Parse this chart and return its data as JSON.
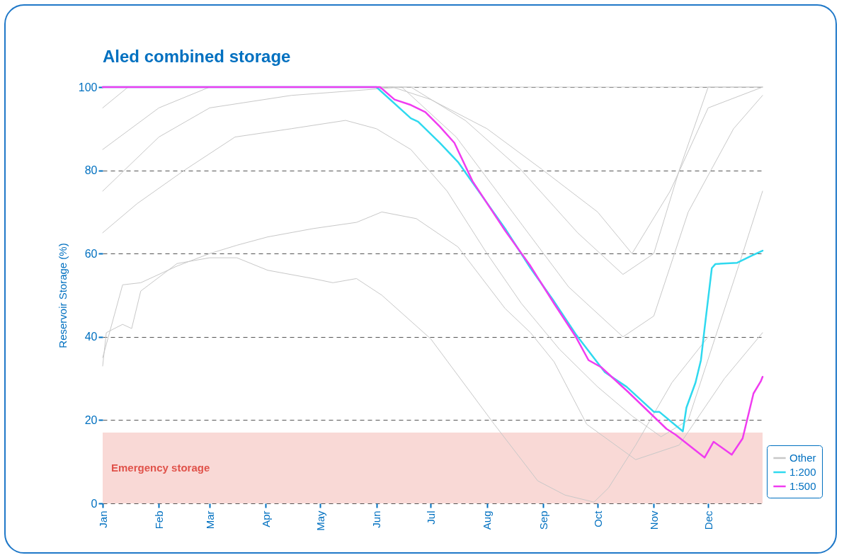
{
  "chart_data": {
    "type": "line",
    "title": "Aled combined storage",
    "ylabel": "Reservoir Storage (%)",
    "xlim": [
      "--01-01",
      "--12-31"
    ],
    "xticks": [
      {
        "value": "--01-01",
        "label": "Jan"
      },
      {
        "value": "--02-01",
        "label": "Feb"
      },
      {
        "value": "--03-01",
        "label": "Mar"
      },
      {
        "value": "--04-01",
        "label": "Apr"
      },
      {
        "value": "--05-01",
        "label": "May"
      },
      {
        "value": "--06-01",
        "label": "Jun"
      },
      {
        "value": "--07-01",
        "label": "Jul"
      },
      {
        "value": "--08-01",
        "label": "Aug"
      },
      {
        "value": "--09-01",
        "label": "Sep"
      },
      {
        "value": "--10-01",
        "label": "Oct"
      },
      {
        "value": "--11-01",
        "label": "Nov"
      },
      {
        "value": "--12-01",
        "label": "Dec"
      }
    ],
    "ylim": [
      0,
      100
    ],
    "yticks": [
      0,
      20,
      40,
      60,
      80,
      100
    ],
    "grid": "y",
    "legend": "bottom right",
    "line_style": "solid",
    "marker": "none",
    "bands": [
      {
        "axis": "y",
        "from": 0,
        "to": 17,
        "label": "Emergency storage",
        "color": "#f9d9d6"
      }
    ],
    "series": [
      {
        "name": "Other",
        "color": "#c8c8c8",
        "x": [
          "--01-01",
          "--12-31"
        ],
        "values": [
          100,
          100
        ]
      },
      {
        "color": "#c8c8c8",
        "x": [
          "--01-01",
          "--01-20",
          "--02-15",
          "--03-15",
          "--04-15",
          "--05-15",
          "--06-01",
          "--06-20",
          "--07-10",
          "--08-01",
          "--08-20",
          "--09-10",
          "--10-01",
          "--10-20",
          "--11-05",
          "--11-20",
          "--12-05",
          "--12-20",
          "--12-31"
        ],
        "values": [
          65,
          72,
          80,
          88,
          90,
          92,
          90,
          85,
          75,
          60,
          48,
          37,
          28,
          21,
          16,
          20,
          40,
          60,
          75
        ]
      },
      {
        "color": "#c8c8c8",
        "x": [
          "--01-01",
          "--02-01",
          "--03-01",
          "--06-10",
          "--07-01",
          "--08-01",
          "--09-01",
          "--10-01",
          "--10-20",
          "--11-10",
          "--12-01",
          "--12-31"
        ],
        "values": [
          85,
          95,
          100,
          100,
          97,
          90,
          80,
          70,
          60,
          75,
          95,
          100
        ]
      },
      {
        "color": "#c8c8c8",
        "x": [
          "--01-01",
          "--02-01",
          "--03-01",
          "--04-15",
          "--06-15",
          "--07-15",
          "--08-15",
          "--09-15",
          "--10-15",
          "--11-01",
          "--11-20",
          "--12-15",
          "--12-31"
        ],
        "values": [
          75,
          88,
          95,
          98,
          100,
          88,
          70,
          52,
          40,
          45,
          70,
          90,
          98
        ]
      },
      {
        "color": "#c8c8c8",
        "x": [
          "--01-01",
          "--01-15",
          "--06-20",
          "--07-20",
          "--08-20",
          "--09-20",
          "--10-15",
          "--11-01",
          "--11-15",
          "--12-01",
          "--12-31"
        ],
        "values": [
          95,
          100,
          100,
          92,
          80,
          65,
          55,
          60,
          80,
          100,
          100
        ]
      },
      {
        "color": "#c8c8c8",
        "x": [
          "--01-01",
          "--01-12",
          "--01-22",
          "--02-11",
          "--03-01",
          "--03-16",
          "--04-02",
          "--04-27",
          "--05-21",
          "--06-04",
          "--06-23",
          "--07-16",
          "--08-11",
          "--08-25",
          "--09-07",
          "--09-25",
          "--10-22",
          "--11-15",
          "--12-10",
          "--12-31"
        ],
        "values": [
          35,
          52.5,
          53,
          57,
          60,
          62,
          64,
          66,
          67.5,
          70,
          68.4,
          61.6,
          46.8,
          41,
          34,
          19,
          10.5,
          14,
          30,
          41
        ]
      },
      {
        "color": "#c8c8c8",
        "x": [
          "--01-01",
          "--01-03",
          "--01-12",
          "--01-17",
          "--01-22",
          "--02-11",
          "--03-01",
          "--03-16",
          "--04-02",
          "--04-27",
          "--05-08",
          "--05-21",
          "--06-04",
          "--07-01",
          "--08-05",
          "--08-29",
          "--09-13",
          "--09-29",
          "--10-07",
          "--10-22",
          "--11-11",
          "--12-01"
        ],
        "values": [
          33,
          41,
          43,
          42,
          51,
          57.6,
          59,
          59,
          56,
          54,
          53,
          54,
          50,
          39.5,
          19,
          5.4,
          2,
          0.3,
          3.7,
          14,
          29,
          40
        ]
      },
      {
        "name": "1:200",
        "color": "#2fd9ef",
        "x": [
          "--01-01",
          "--06-01",
          "--06-20",
          "--06-24",
          "--07-06",
          "--07-16",
          "--07-29",
          "--08-11",
          "--08-25",
          "--09-07",
          "--09-19",
          "--10-05",
          "--10-17",
          "--11-01",
          "--11-04",
          "--11-17",
          "--11-19",
          "--11-24",
          "--11-27",
          "--11-29",
          "--12-03",
          "--12-05",
          "--12-17",
          "--12-25",
          "--12-31"
        ],
        "values": [
          100,
          100,
          92.5,
          91.7,
          86.6,
          82,
          74,
          66,
          56.5,
          48.5,
          40.6,
          31.5,
          28,
          22,
          22,
          17.3,
          23,
          29,
          34.4,
          42,
          56.5,
          57.5,
          57.8,
          59.5,
          60.7
        ]
      },
      {
        "name": "1:500",
        "color": "#f03cf0",
        "x": [
          "--01-01",
          "--06-03",
          "--06-11",
          "--06-20",
          "--06-28",
          "--07-06",
          "--07-14",
          "--07-24",
          "--08-11",
          "--08-25",
          "--09-07",
          "--09-19",
          "--09-26",
          "--10-03",
          "--10-18",
          "--11-08",
          "--11-13",
          "--11-29",
          "--12-04",
          "--12-14",
          "--12-20",
          "--12-26",
          "--12-30",
          "--12-31"
        ],
        "values": [
          100,
          100,
          97,
          95.7,
          94,
          90.5,
          86.6,
          77.4,
          65.5,
          57,
          48,
          40,
          34.4,
          32.7,
          26.7,
          17.9,
          16.5,
          11,
          14.8,
          11.7,
          15.6,
          26.4,
          29.3,
          30.4
        ]
      }
    ]
  }
}
